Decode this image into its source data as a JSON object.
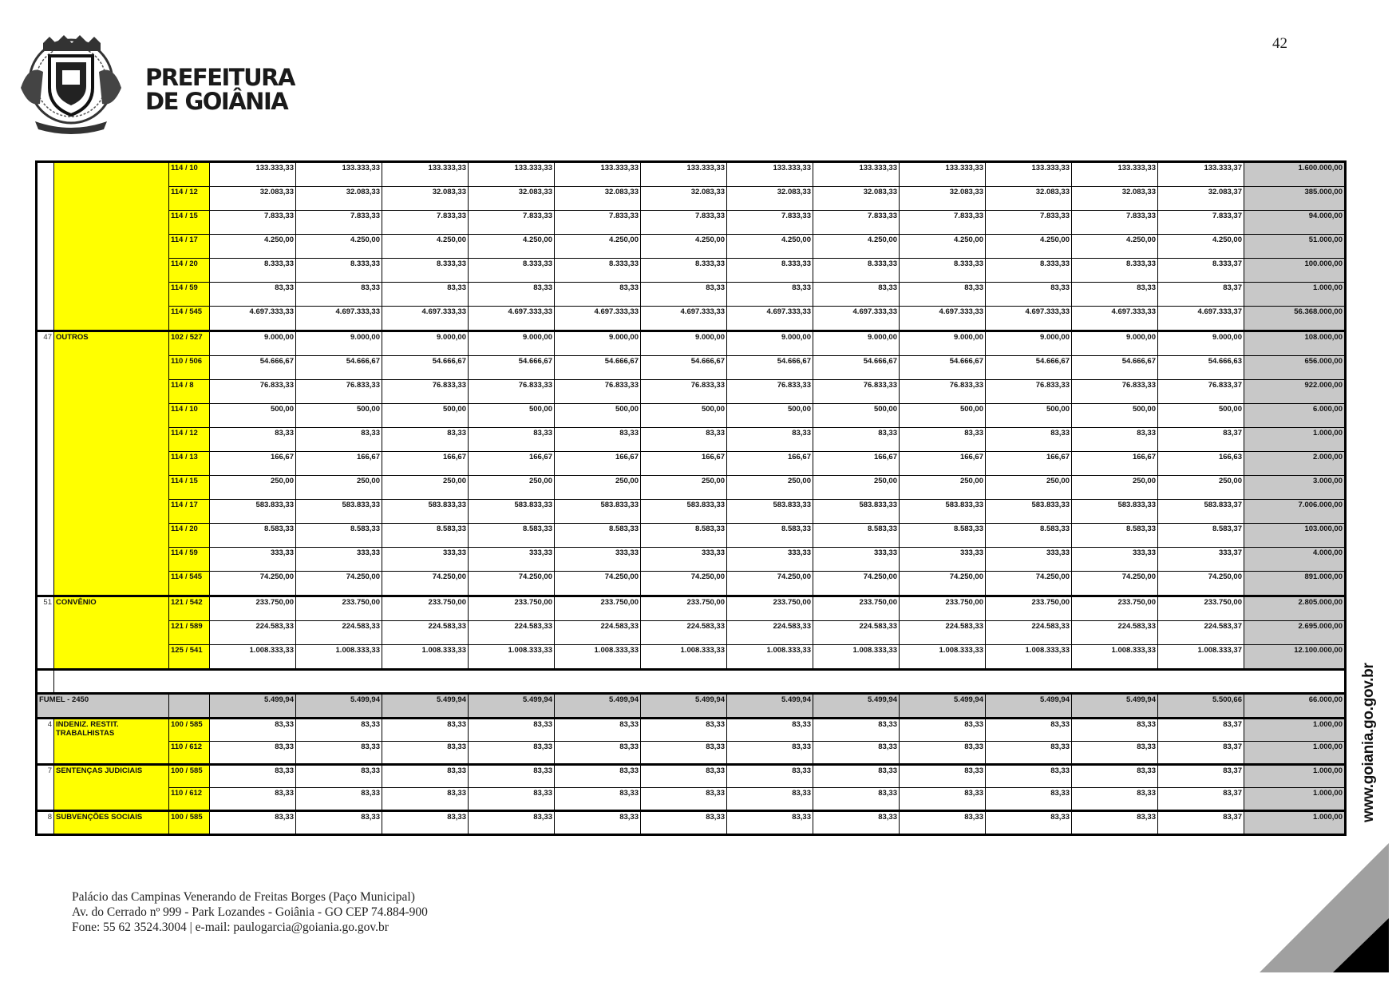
{
  "header": {
    "brand_line1": "PREFEITURA",
    "brand_line2": "DE GOIÂNIA",
    "page_number": "42",
    "logo_icon": "city-coat-of-arms"
  },
  "colors": {
    "yellow": "#ffff00",
    "gray": "#c8c8c8"
  },
  "table": {
    "groups": [
      {
        "num": "",
        "label": "",
        "rows": [
          {
            "code": "114 / 10",
            "months": [
              "133.333,33",
              "133.333,33",
              "133.333,33",
              "133.333,33",
              "133.333,33",
              "133.333,33",
              "133.333,33",
              "133.333,33",
              "133.333,33",
              "133.333,33",
              "133.333,33",
              "133.333,37"
            ],
            "total": "1.600.000,00"
          },
          {
            "code": "114 / 12",
            "months": [
              "32.083,33",
              "32.083,33",
              "32.083,33",
              "32.083,33",
              "32.083,33",
              "32.083,33",
              "32.083,33",
              "32.083,33",
              "32.083,33",
              "32.083,33",
              "32.083,33",
              "32.083,37"
            ],
            "total": "385.000,00"
          },
          {
            "code": "114 / 15",
            "months": [
              "7.833,33",
              "7.833,33",
              "7.833,33",
              "7.833,33",
              "7.833,33",
              "7.833,33",
              "7.833,33",
              "7.833,33",
              "7.833,33",
              "7.833,33",
              "7.833,33",
              "7.833,37"
            ],
            "total": "94.000,00"
          },
          {
            "code": "114 / 17",
            "months": [
              "4.250,00",
              "4.250,00",
              "4.250,00",
              "4.250,00",
              "4.250,00",
              "4.250,00",
              "4.250,00",
              "4.250,00",
              "4.250,00",
              "4.250,00",
              "4.250,00",
              "4.250,00"
            ],
            "total": "51.000,00"
          },
          {
            "code": "114 / 20",
            "months": [
              "8.333,33",
              "8.333,33",
              "8.333,33",
              "8.333,33",
              "8.333,33",
              "8.333,33",
              "8.333,33",
              "8.333,33",
              "8.333,33",
              "8.333,33",
              "8.333,33",
              "8.333,37"
            ],
            "total": "100.000,00"
          },
          {
            "code": "114 / 59",
            "months": [
              "83,33",
              "83,33",
              "83,33",
              "83,33",
              "83,33",
              "83,33",
              "83,33",
              "83,33",
              "83,33",
              "83,33",
              "83,33",
              "83,37"
            ],
            "total": "1.000,00"
          },
          {
            "code": "114 / 545",
            "months": [
              "4.697.333,33",
              "4.697.333,33",
              "4.697.333,33",
              "4.697.333,33",
              "4.697.333,33",
              "4.697.333,33",
              "4.697.333,33",
              "4.697.333,33",
              "4.697.333,33",
              "4.697.333,33",
              "4.697.333,33",
              "4.697.333,37"
            ],
            "total": "56.368.000,00"
          }
        ]
      },
      {
        "num": "47",
        "label": "OUTROS",
        "rows": [
          {
            "code": "102 / 527",
            "months": [
              "9.000,00",
              "9.000,00",
              "9.000,00",
              "9.000,00",
              "9.000,00",
              "9.000,00",
              "9.000,00",
              "9.000,00",
              "9.000,00",
              "9.000,00",
              "9.000,00",
              "9.000,00"
            ],
            "total": "108.000,00"
          },
          {
            "code": "110 / 506",
            "months": [
              "54.666,67",
              "54.666,67",
              "54.666,67",
              "54.666,67",
              "54.666,67",
              "54.666,67",
              "54.666,67",
              "54.666,67",
              "54.666,67",
              "54.666,67",
              "54.666,67",
              "54.666,63"
            ],
            "total": "656.000,00"
          },
          {
            "code": "114 / 8",
            "months": [
              "76.833,33",
              "76.833,33",
              "76.833,33",
              "76.833,33",
              "76.833,33",
              "76.833,33",
              "76.833,33",
              "76.833,33",
              "76.833,33",
              "76.833,33",
              "76.833,33",
              "76.833,37"
            ],
            "total": "922.000,00"
          },
          {
            "code": "114 / 10",
            "months": [
              "500,00",
              "500,00",
              "500,00",
              "500,00",
              "500,00",
              "500,00",
              "500,00",
              "500,00",
              "500,00",
              "500,00",
              "500,00",
              "500,00"
            ],
            "total": "6.000,00"
          },
          {
            "code": "114 / 12",
            "months": [
              "83,33",
              "83,33",
              "83,33",
              "83,33",
              "83,33",
              "83,33",
              "83,33",
              "83,33",
              "83,33",
              "83,33",
              "83,33",
              "83,37"
            ],
            "total": "1.000,00"
          },
          {
            "code": "114 / 13",
            "months": [
              "166,67",
              "166,67",
              "166,67",
              "166,67",
              "166,67",
              "166,67",
              "166,67",
              "166,67",
              "166,67",
              "166,67",
              "166,67",
              "166,63"
            ],
            "total": "2.000,00"
          },
          {
            "code": "114 / 15",
            "months": [
              "250,00",
              "250,00",
              "250,00",
              "250,00",
              "250,00",
              "250,00",
              "250,00",
              "250,00",
              "250,00",
              "250,00",
              "250,00",
              "250,00"
            ],
            "total": "3.000,00"
          },
          {
            "code": "114 / 17",
            "months": [
              "583.833,33",
              "583.833,33",
              "583.833,33",
              "583.833,33",
              "583.833,33",
              "583.833,33",
              "583.833,33",
              "583.833,33",
              "583.833,33",
              "583.833,33",
              "583.833,33",
              "583.833,37"
            ],
            "total": "7.006.000,00"
          },
          {
            "code": "114 / 20",
            "months": [
              "8.583,33",
              "8.583,33",
              "8.583,33",
              "8.583,33",
              "8.583,33",
              "8.583,33",
              "8.583,33",
              "8.583,33",
              "8.583,33",
              "8.583,33",
              "8.583,33",
              "8.583,37"
            ],
            "total": "103.000,00"
          },
          {
            "code": "114 / 59",
            "months": [
              "333,33",
              "333,33",
              "333,33",
              "333,33",
              "333,33",
              "333,33",
              "333,33",
              "333,33",
              "333,33",
              "333,33",
              "333,33",
              "333,37"
            ],
            "total": "4.000,00"
          },
          {
            "code": "114 / 545",
            "months": [
              "74.250,00",
              "74.250,00",
              "74.250,00",
              "74.250,00",
              "74.250,00",
              "74.250,00",
              "74.250,00",
              "74.250,00",
              "74.250,00",
              "74.250,00",
              "74.250,00",
              "74.250,00"
            ],
            "total": "891.000,00"
          }
        ]
      },
      {
        "num": "51",
        "label": "CONVÊNIO",
        "rows": [
          {
            "code": "121 / 542",
            "months": [
              "233.750,00",
              "233.750,00",
              "233.750,00",
              "233.750,00",
              "233.750,00",
              "233.750,00",
              "233.750,00",
              "233.750,00",
              "233.750,00",
              "233.750,00",
              "233.750,00",
              "233.750,00"
            ],
            "total": "2.805.000,00"
          },
          {
            "code": "121 / 589",
            "months": [
              "224.583,33",
              "224.583,33",
              "224.583,33",
              "224.583,33",
              "224.583,33",
              "224.583,33",
              "224.583,33",
              "224.583,33",
              "224.583,33",
              "224.583,33",
              "224.583,33",
              "224.583,37"
            ],
            "total": "2.695.000,00"
          },
          {
            "code": "125 / 541",
            "months": [
              "1.008.333,33",
              "1.008.333,33",
              "1.008.333,33",
              "1.008.333,33",
              "1.008.333,33",
              "1.008.333,33",
              "1.008.333,33",
              "1.008.333,33",
              "1.008.333,33",
              "1.008.333,33",
              "1.008.333,33",
              "1.008.333,37"
            ],
            "total": "12.100.000,00"
          }
        ]
      }
    ],
    "section": {
      "label": "FUMEL - 2450",
      "months": [
        "5.499,94",
        "5.499,94",
        "5.499,94",
        "5.499,94",
        "5.499,94",
        "5.499,94",
        "5.499,94",
        "5.499,94",
        "5.499,94",
        "5.499,94",
        "5.499,94",
        "5.500,66"
      ],
      "total": "66.000,00",
      "groups": [
        {
          "num": "4",
          "label": "INDENIZ. RESTIT. TRABALHISTAS",
          "rows": [
            {
              "code": "100 / 585",
              "months": [
                "83,33",
                "83,33",
                "83,33",
                "83,33",
                "83,33",
                "83,33",
                "83,33",
                "83,33",
                "83,33",
                "83,33",
                "83,33",
                "83,37"
              ],
              "total": "1.000,00"
            },
            {
              "code": "110 / 612",
              "months": [
                "83,33",
                "83,33",
                "83,33",
                "83,33",
                "83,33",
                "83,33",
                "83,33",
                "83,33",
                "83,33",
                "83,33",
                "83,33",
                "83,37"
              ],
              "total": "1.000,00"
            }
          ]
        },
        {
          "num": "7",
          "label": "SENTENÇAS JUDICIAIS",
          "rows": [
            {
              "code": "100 / 585",
              "months": [
                "83,33",
                "83,33",
                "83,33",
                "83,33",
                "83,33",
                "83,33",
                "83,33",
                "83,33",
                "83,33",
                "83,33",
                "83,33",
                "83,37"
              ],
              "total": "1.000,00"
            },
            {
              "code": "110 / 612",
              "months": [
                "83,33",
                "83,33",
                "83,33",
                "83,33",
                "83,33",
                "83,33",
                "83,33",
                "83,33",
                "83,33",
                "83,33",
                "83,33",
                "83,37"
              ],
              "total": "1.000,00"
            }
          ]
        },
        {
          "num": "8",
          "label": "SUBVENÇÕES SOCIAIS",
          "rows": [
            {
              "code": "100 / 585",
              "months": [
                "83,33",
                "83,33",
                "83,33",
                "83,33",
                "83,33",
                "83,33",
                "83,33",
                "83,33",
                "83,33",
                "83,33",
                "83,33",
                "83,37"
              ],
              "total": "1.000,00"
            }
          ]
        }
      ]
    }
  },
  "side_url": "www.goiania.go.gov.br",
  "footer": {
    "line1": "Palácio das Campinas Venerando de Freitas Borges (Paço Municipal)",
    "line2": "Av. do Cerrado nº 999 - Park Lozandes - Goiânia - GO CEP 74.884-900",
    "line3": "Fone: 55 62 3524.3004 | e-mail: paulogarcia@goiania.go.gov.br"
  }
}
